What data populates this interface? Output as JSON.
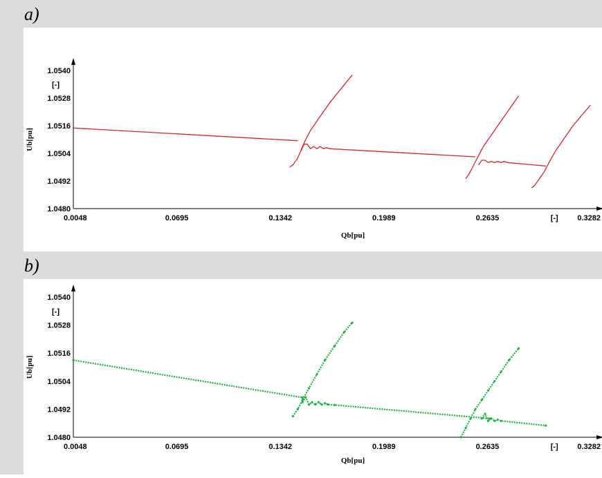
{
  "panels": [
    {
      "letter": "a)"
    },
    {
      "letter": "b)"
    }
  ],
  "chart_data": [
    {
      "type": "line",
      "panel": "a)",
      "color": "#cc2a2a",
      "xlabel": "Qb[pu]",
      "ylabel": "Ub[pu]",
      "unit_label": "[-]",
      "xlim": [
        0.0048,
        0.3282
      ],
      "ylim": [
        1.048,
        1.054
      ],
      "xticks": [
        "0.0048",
        "0.0695",
        "0.1342",
        "0.1989",
        "0.2635",
        "[-]",
        "0.3282"
      ],
      "yticks": [
        "1.0480",
        "1.0492",
        "1.0504",
        "1.0516",
        "1.0528",
        "[-]",
        "1.0540"
      ],
      "series": [
        {
          "x": [
            0.0048,
            0.145
          ],
          "y": [
            1.0515,
            1.05095
          ]
        },
        {
          "x": [
            0.14,
            0.142,
            0.145,
            0.148,
            0.15,
            0.153,
            0.158,
            0.165,
            0.172,
            0.179
          ],
          "y": [
            1.0498,
            1.0499,
            1.0502,
            1.0507,
            1.051,
            1.0514,
            1.0519,
            1.0526,
            1.0532,
            1.0538
          ]
        },
        {
          "x": [
            0.147,
            0.149,
            0.151,
            0.153,
            0.155,
            0.157,
            0.159,
            0.161,
            0.163,
            0.165,
            0.256
          ],
          "y": [
            1.0505,
            1.0508,
            1.0508,
            1.0506,
            1.0507,
            1.0506,
            1.0507,
            1.0506,
            1.05065,
            1.0506,
            1.05025
          ]
        },
        {
          "x": [
            0.25,
            0.252,
            0.255,
            0.258,
            0.261,
            0.265,
            0.27,
            0.276,
            0.283
          ],
          "y": [
            1.0493,
            1.0495,
            1.0499,
            1.0503,
            1.0507,
            1.0511,
            1.0516,
            1.0522,
            1.0529
          ]
        },
        {
          "x": [
            0.258,
            0.26,
            0.262,
            0.264,
            0.266,
            0.268,
            0.27,
            0.272,
            0.274,
            0.276,
            0.3
          ],
          "y": [
            1.0499,
            1.0501,
            1.0501,
            1.05,
            1.05005,
            1.05,
            1.05005,
            1.05,
            1.05005,
            1.05,
            1.04985
          ]
        },
        {
          "x": [
            0.291,
            0.293,
            0.296,
            0.299,
            0.302,
            0.306,
            0.311,
            0.317,
            0.323,
            0.328
          ],
          "y": [
            1.0489,
            1.049,
            1.0493,
            1.0496,
            1.05,
            1.0505,
            1.051,
            1.0516,
            1.0521,
            1.0525
          ]
        }
      ]
    },
    {
      "type": "scatter",
      "panel": "b)",
      "color": "#20b040",
      "xlabel": "Qb[pu]",
      "ylabel": "Ub[pu]",
      "unit_label": "[-]",
      "xlim": [
        0.0048,
        0.3282
      ],
      "ylim": [
        1.048,
        1.054
      ],
      "xticks": [
        "0.0048",
        "0.0695",
        "0.1342",
        "0.1989",
        "0.2635",
        "[-]",
        "0.3282"
      ],
      "yticks": [
        "1.0480",
        "1.0492",
        "1.0504",
        "1.0516",
        "1.0528",
        "[-]",
        "1.0540"
      ],
      "series": [
        {
          "x": [
            0.0048,
            0.148
          ],
          "y": [
            1.0513,
            1.0497
          ]
        },
        {
          "x": [
            0.142,
            0.145,
            0.148,
            0.152,
            0.157,
            0.162,
            0.168,
            0.174,
            0.179
          ],
          "y": [
            1.0489,
            1.0492,
            1.0496,
            1.0501,
            1.0507,
            1.0513,
            1.0519,
            1.0525,
            1.0529
          ]
        },
        {
          "x": [
            0.148,
            0.15,
            0.152,
            0.154,
            0.156,
            0.158,
            0.16,
            0.162,
            0.164,
            0.168,
            0.265
          ],
          "y": [
            1.0495,
            1.0497,
            1.0494,
            1.0495,
            1.0494,
            1.0495,
            1.0494,
            1.04945,
            1.0494,
            1.04938,
            1.0488
          ]
        },
        {
          "x": [
            0.247,
            0.25,
            0.253,
            0.256,
            0.26,
            0.264,
            0.268,
            0.272,
            0.277,
            0.283
          ],
          "y": [
            1.048,
            1.0484,
            1.0488,
            1.0492,
            1.0496,
            1.05,
            1.0504,
            1.0508,
            1.0513,
            1.0518
          ]
        },
        {
          "x": [
            0.26,
            0.262,
            0.264,
            0.266,
            0.268,
            0.27,
            0.272,
            0.3
          ],
          "y": [
            1.0488,
            1.049,
            1.0487,
            1.0488,
            1.0487,
            1.04875,
            1.0487,
            1.0485
          ]
        }
      ]
    }
  ]
}
